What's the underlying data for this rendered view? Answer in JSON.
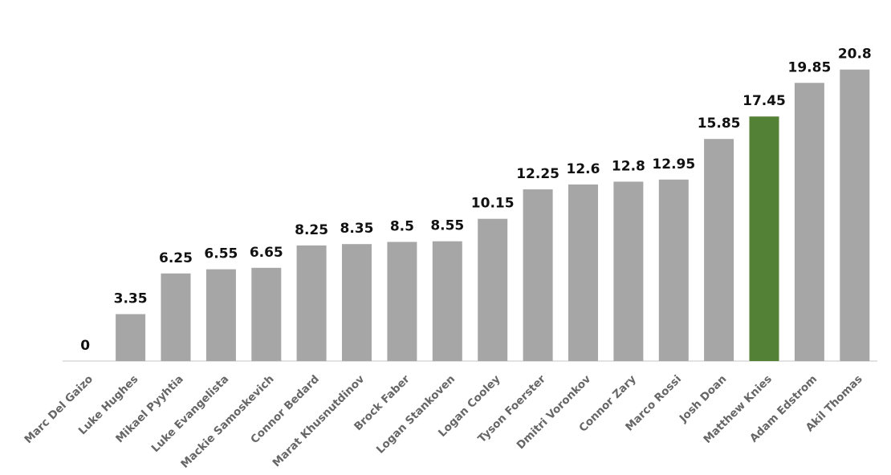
{
  "chart_data": {
    "type": "bar",
    "title": "",
    "xlabel": "",
    "ylabel": "",
    "ylim": [
      0,
      22.5
    ],
    "grid": false,
    "legend": "none",
    "categories": [
      "Marc Del Gaizo",
      "Luke Hughes",
      "Mikael Pyyhtia",
      "Luke Evangelista",
      "Mackie Samoskevich",
      "Connor Bedard",
      "Marat Khusnutdinov",
      "Brock Faber",
      "Logan Stankoven",
      "Logan Cooley",
      "Tyson Foerster",
      "Dmitri Voronkov",
      "Connor Zary",
      "Marco Rossi",
      "Josh Doan",
      "Matthew Knies",
      "Adam Edstrom",
      "Akil Thomas"
    ],
    "values": [
      0,
      3.35,
      6.25,
      6.55,
      6.65,
      8.25,
      8.35,
      8.5,
      8.55,
      10.15,
      12.25,
      12.6,
      12.8,
      12.95,
      15.85,
      17.45,
      19.85,
      20.8
    ],
    "value_labels": [
      "0",
      "3.35",
      "6.25",
      "6.55",
      "6.65",
      "8.25",
      "8.35",
      "8.5",
      "8.55",
      "10.15",
      "12.25",
      "12.6",
      "12.8",
      "12.95",
      "15.85",
      "17.45",
      "19.85",
      "20.8"
    ],
    "highlight": "Matthew Knies",
    "colors": {
      "bar": "#a6a6a6",
      "highlight": "#538135",
      "axis": "#d9d9d9",
      "value_text": "#111111",
      "category_text": "#666666"
    }
  }
}
